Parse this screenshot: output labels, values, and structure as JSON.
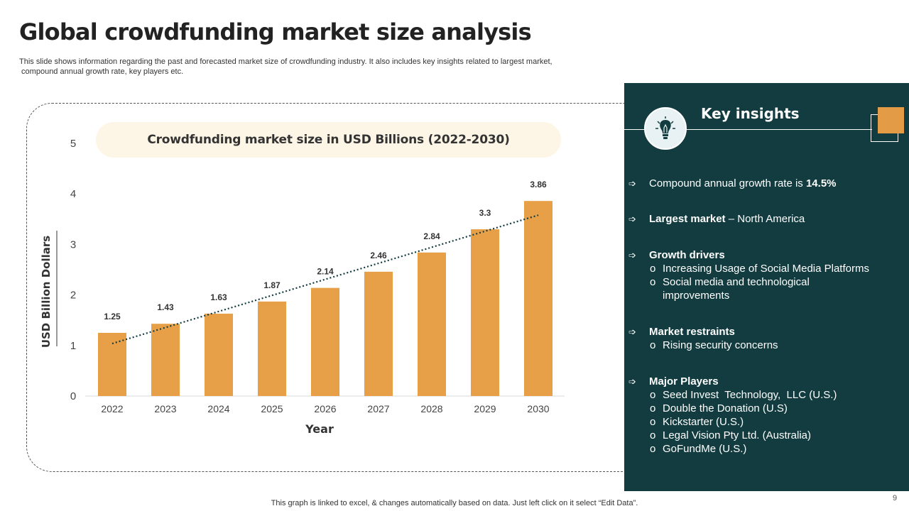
{
  "title": "Global crowdfunding market size analysis",
  "subtitle_line1": "This slide shows information regarding the past and forecasted market size of crowdfunding industry. It also includes key insights related to largest market,",
  "subtitle_line2": " compound annual growth rate, key players etc.",
  "chart_data": {
    "type": "bar",
    "title": "Crowdfunding market size in USD Billions (2022-2030)",
    "categories": [
      "2022",
      "2023",
      "2024",
      "2025",
      "2026",
      "2027",
      "2028",
      "2029",
      "2030"
    ],
    "values": [
      1.25,
      1.43,
      1.63,
      1.87,
      2.14,
      2.46,
      2.84,
      3.3,
      3.86
    ],
    "value_labels": [
      "1.25",
      "1.43",
      "1.63",
      "1.87",
      "2.14",
      "2.46",
      "2.84",
      "3.3",
      "3.86"
    ],
    "xlabel": "Year",
    "ylabel": "USD Billion Dollars",
    "ylim": [
      0,
      5
    ],
    "yticks": [
      "0",
      "1",
      "2",
      "3",
      "4",
      "5"
    ],
    "trendline": "linear",
    "grid": false,
    "bar_color": "#e8a048",
    "trend_color": "#123c3f"
  },
  "insights": {
    "title": "Key insights",
    "cagr_text": "Compound annual growth rate is ",
    "cagr_value": "14.5%",
    "largest_market_label": "Largest market",
    "largest_market_value": " – North America",
    "growth_drivers_label": "Growth drivers",
    "growth_driver_1": "Increasing Usage of Social Media Platforms",
    "growth_driver_2a": "Social media and technological",
    "growth_driver_2b": "improvements",
    "restraints_label": "Market restraints",
    "restraint_1": "Rising security concerns",
    "players_label": "Major Players",
    "player_1": "Seed Invest  Technology,  LLC (U.S.)",
    "player_2": "Double the Donation (U.S)",
    "player_3": "Kickstarter (U.S.)",
    "player_4": "Legal Vision Pty Ltd. (Australia)",
    "player_5": "GoFundMe (U.S.)",
    "bullet_glyph": "o",
    "arrow_glyph": "➩"
  },
  "footer_note": "This graph is linked to excel,  & changes automatically based on data. Just left click on it select “Edit Data”.",
  "page_number": "9",
  "colors": {
    "panel_bg": "#123c3f",
    "accent_orange": "#e49b45",
    "pill_bg": "#fdf6e6"
  }
}
